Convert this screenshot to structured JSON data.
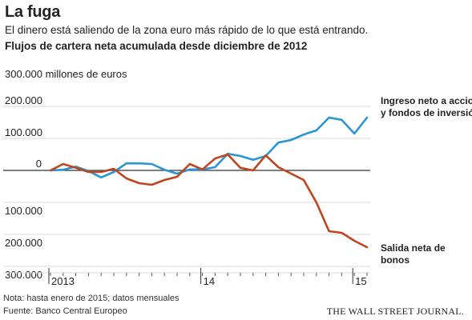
{
  "header": {
    "title": "La fuga",
    "subtitle": "El dinero está saliendo de la zona euro más rápido de lo que está entrando.",
    "chart_heading": "Flujos de cartera neta acumulada desde diciembre de 2012"
  },
  "footer": {
    "note": "Nota: hasta enero de 2015; datos mensuales",
    "source": "Fuente: Banco Central Europeo",
    "brand": "THE WALL STREET JOURNAL."
  },
  "colors": {
    "inflow": "#2a95d3",
    "outflow": "#c0441e",
    "grid": "#d8d8d8",
    "zero": "#333333"
  },
  "chart_data": {
    "type": "line",
    "title": "Flujos de cartera neta acumulada desde diciembre de 2012",
    "ylabel": "300.000 millones de euros",
    "ylim": [
      -300000,
      300000
    ],
    "y_ticks": [
      {
        "value": 300000,
        "label": "300.000 millones de euros"
      },
      {
        "value": 200000,
        "label": "200.000"
      },
      {
        "value": 100000,
        "label": "100.000"
      },
      {
        "value": 0,
        "label": "0"
      },
      {
        "value": -100000,
        "label": "100.000"
      },
      {
        "value": -200000,
        "label": "200.000"
      },
      {
        "value": -300000,
        "label": "300.000"
      }
    ],
    "x_ticks": [
      {
        "index": 0,
        "label": "2013"
      },
      {
        "index": 12,
        "label": "14"
      },
      {
        "index": 24,
        "label": "15"
      }
    ],
    "x": [
      "2012-12",
      "2013-01",
      "2013-02",
      "2013-03",
      "2013-04",
      "2013-05",
      "2013-06",
      "2013-07",
      "2013-08",
      "2013-09",
      "2013-10",
      "2013-11",
      "2013-12",
      "2014-01",
      "2014-02",
      "2014-03",
      "2014-04",
      "2014-05",
      "2014-06",
      "2014-07",
      "2014-08",
      "2014-09",
      "2014-10",
      "2014-11",
      "2014-12",
      "2015-01"
    ],
    "grid": true,
    "series": [
      {
        "name": "Ingreso neto a acciones y fondos de inversión",
        "label_lines": [
          "Ingreso neto a acciones",
          "y fondos de inversión"
        ],
        "color_key": "inflow",
        "values": [
          0,
          2000,
          12000,
          -2000,
          -22000,
          -5000,
          22000,
          22000,
          20000,
          2000,
          -10000,
          3000,
          3000,
          10000,
          52000,
          45000,
          33000,
          45000,
          87000,
          95000,
          112000,
          125000,
          165000,
          158000,
          115000,
          165000
        ]
      },
      {
        "name": "Salida neta de bonos",
        "label_lines": [
          "Salida neta de",
          "bonos"
        ],
        "color_key": "outflow",
        "values": [
          0,
          20000,
          8000,
          -5000,
          -5000,
          5000,
          -25000,
          -40000,
          -45000,
          -30000,
          -20000,
          20000,
          3000,
          37000,
          50000,
          8000,
          0,
          47000,
          10000,
          -10000,
          -30000,
          -100000,
          -190000,
          -195000,
          -220000,
          -240000
        ]
      }
    ]
  }
}
